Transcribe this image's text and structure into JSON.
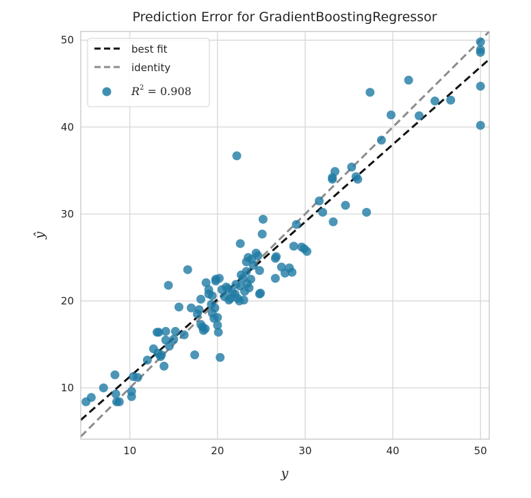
{
  "chart_data": {
    "type": "scatter",
    "title": "Prediction Error for GradientBoostingRegressor",
    "xlabel": "y",
    "ylabel": "ŷ",
    "xlim": [
      4.4,
      51
    ],
    "ylim": [
      4.1,
      51
    ],
    "xticks": [
      10,
      20,
      30,
      40,
      50
    ],
    "yticks": [
      10,
      20,
      30,
      40,
      50
    ],
    "grid": true,
    "legend_position": "top-left",
    "colors": {
      "points": "#1f7ba4",
      "best_fit": "#111111",
      "identity": "#8c8c8c",
      "grid": "#d6d6d6",
      "frame": "#c0c0c0"
    },
    "series": [
      {
        "name": "best fit",
        "type": "line",
        "x": [
          4.4,
          51
        ],
        "y": [
          6.3,
          47.8
        ]
      },
      {
        "name": "identity",
        "type": "line",
        "x": [
          4.4,
          51
        ],
        "y": [
          4.4,
          51
        ]
      },
      {
        "name": "R² = 0.908",
        "label_prefix": "R",
        "label_sup": "2",
        "label_rest": " = 0.908",
        "type": "scatter",
        "points": [
          [
            5.0,
            8.4
          ],
          [
            5.6,
            8.9
          ],
          [
            7.0,
            10.0
          ],
          [
            8.3,
            11.5
          ],
          [
            8.4,
            9.3
          ],
          [
            8.5,
            8.4
          ],
          [
            8.8,
            8.4
          ],
          [
            10.2,
            9.6
          ],
          [
            10.2,
            9.0
          ],
          [
            10.4,
            11.3
          ],
          [
            10.9,
            11.2
          ],
          [
            12.0,
            13.2
          ],
          [
            12.7,
            14.5
          ],
          [
            13.1,
            16.4
          ],
          [
            13.3,
            16.4
          ],
          [
            13.2,
            14.0
          ],
          [
            13.5,
            13.6
          ],
          [
            13.6,
            13.8
          ],
          [
            13.9,
            12.5
          ],
          [
            14.1,
            15.5
          ],
          [
            14.1,
            16.5
          ],
          [
            14.5,
            14.8
          ],
          [
            14.4,
            21.8
          ],
          [
            15.0,
            15.6
          ],
          [
            15.2,
            16.5
          ],
          [
            15.6,
            19.3
          ],
          [
            16.2,
            16.1
          ],
          [
            16.6,
            23.6
          ],
          [
            17.0,
            19.2
          ],
          [
            17.4,
            13.8
          ],
          [
            17.7,
            18.5
          ],
          [
            17.9,
            19.0
          ],
          [
            18.1,
            17.3
          ],
          [
            18.1,
            20.2
          ],
          [
            18.3,
            17.0
          ],
          [
            18.4,
            16.6
          ],
          [
            18.6,
            16.8
          ],
          [
            18.7,
            22.1
          ],
          [
            19.0,
            21.3
          ],
          [
            19.0,
            20.8
          ],
          [
            19.4,
            20.6
          ],
          [
            19.3,
            19.6
          ],
          [
            19.4,
            18.6
          ],
          [
            19.6,
            18.0
          ],
          [
            19.8,
            22.5
          ],
          [
            19.8,
            22.3
          ],
          [
            19.7,
            19.2
          ],
          [
            20.0,
            18.1
          ],
          [
            20.0,
            17.2
          ],
          [
            20.2,
            22.6
          ],
          [
            20.1,
            16.4
          ],
          [
            20.3,
            13.5
          ],
          [
            20.5,
            21.3
          ],
          [
            20.8,
            20.5
          ],
          [
            21.0,
            21.6
          ],
          [
            21.2,
            21.4
          ],
          [
            21.3,
            20.1
          ],
          [
            21.5,
            20.3
          ],
          [
            21.7,
            21.0
          ],
          [
            22.0,
            20.8
          ],
          [
            22.1,
            21.9
          ],
          [
            22.2,
            36.7
          ],
          [
            22.3,
            20.3
          ],
          [
            22.5,
            20.0
          ],
          [
            22.6,
            21.7
          ],
          [
            22.6,
            26.6
          ],
          [
            22.7,
            23.0
          ],
          [
            22.9,
            22.6
          ],
          [
            23.0,
            20.1
          ],
          [
            23.1,
            21.1
          ],
          [
            23.3,
            24.5
          ],
          [
            23.3,
            23.4
          ],
          [
            23.4,
            22.0
          ],
          [
            23.5,
            25.0
          ],
          [
            23.6,
            21.5
          ],
          [
            23.8,
            22.5
          ],
          [
            23.9,
            24.8
          ],
          [
            24.1,
            24.1
          ],
          [
            24.4,
            25.5
          ],
          [
            24.6,
            25.2
          ],
          [
            24.8,
            23.5
          ],
          [
            24.8,
            20.8
          ],
          [
            24.9,
            20.9
          ],
          [
            25.1,
            27.7
          ],
          [
            25.2,
            29.4
          ],
          [
            26.6,
            24.9
          ],
          [
            26.6,
            22.6
          ],
          [
            26.7,
            25.1
          ],
          [
            27.3,
            23.9
          ],
          [
            27.7,
            23.2
          ],
          [
            28.2,
            23.8
          ],
          [
            28.5,
            23.3
          ],
          [
            28.7,
            26.3
          ],
          [
            29.0,
            28.8
          ],
          [
            29.6,
            26.2
          ],
          [
            29.9,
            26.0
          ],
          [
            30.2,
            25.7
          ],
          [
            31.6,
            31.5
          ],
          [
            32.0,
            30.2
          ],
          [
            33.1,
            34.2
          ],
          [
            33.1,
            34.0
          ],
          [
            33.2,
            29.1
          ],
          [
            33.4,
            34.9
          ],
          [
            34.6,
            31.0
          ],
          [
            35.3,
            35.4
          ],
          [
            35.8,
            34.3
          ],
          [
            36.0,
            34.0
          ],
          [
            37.0,
            30.2
          ],
          [
            37.4,
            44.0
          ],
          [
            38.7,
            38.5
          ],
          [
            39.8,
            41.4
          ],
          [
            41.8,
            45.4
          ],
          [
            43.0,
            41.3
          ],
          [
            44.8,
            43.0
          ],
          [
            46.6,
            43.1
          ],
          [
            50.0,
            49.8
          ],
          [
            50.0,
            48.9
          ],
          [
            50.0,
            48.6
          ],
          [
            50.0,
            44.7
          ],
          [
            50.0,
            40.2
          ]
        ]
      }
    ]
  }
}
